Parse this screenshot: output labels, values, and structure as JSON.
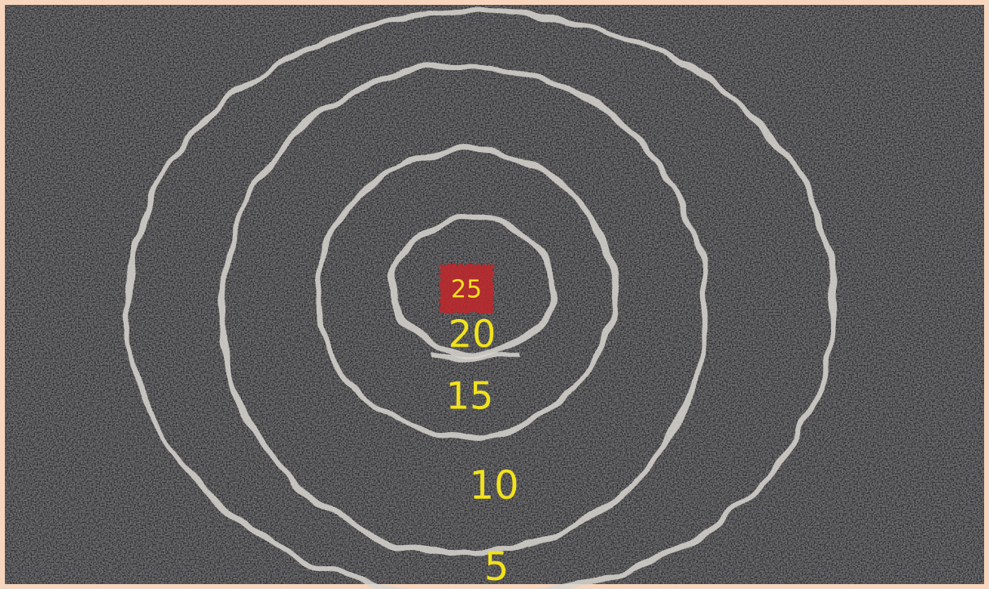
{
  "target": {
    "labels": [
      "25",
      "20",
      "15",
      "10",
      "5"
    ]
  }
}
